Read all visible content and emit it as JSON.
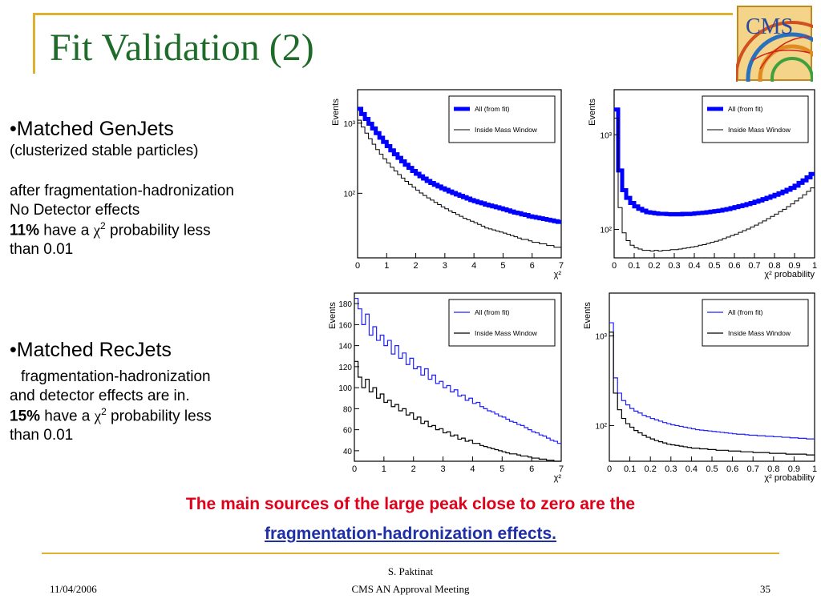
{
  "slide": {
    "title": "Fit Validation (2)",
    "logo_text": "CMS",
    "accent_color": "#e0b030",
    "title_color": "#1f6b2a"
  },
  "left_panel": {
    "section1": {
      "heading": "•Matched GenJets",
      "subheading": "(clusterized stable particles)",
      "line1": "after fragmentation-hadronization",
      "line2": "No Detector effects",
      "stat_value": "11%",
      "stat_text_before": " have a ",
      "chi": "χ",
      "sup": "2",
      "stat_text_after": " probability less",
      "line_last": "than 0.01"
    },
    "section2": {
      "heading": "•Matched RecJets",
      "line1": "fragmentation-hadronization",
      "line2": "and  detector effects are in.",
      "stat_value": "15%",
      "stat_text_before": " have a ",
      "chi": "χ",
      "sup": "2",
      "stat_text_after": " probability less",
      "line_last": "than 0.01"
    }
  },
  "notes": {
    "line1": "The main sources of the large peak close to zero are the",
    "line2": "fragmentation-hadronization effects.",
    "line1_color": "#e0001a",
    "line2_color": "#1f2fa8"
  },
  "footer": {
    "date": "11/04/2006",
    "author": "S. Paktinat",
    "meeting": "CMS AN Approval Meeting",
    "page": "35"
  },
  "chart_data": [
    {
      "type": "line",
      "ylabel": "Events",
      "xlabel": "χ²",
      "log_y": true,
      "xlim": [
        0,
        7
      ],
      "ylim": [
        12,
        3000
      ],
      "xticks": [
        "0",
        "1",
        "2",
        "3",
        "4",
        "5",
        "6",
        "7"
      ],
      "yticks": [
        {
          "value": 100,
          "label": "10²"
        },
        {
          "value": 1000,
          "label": "10³"
        }
      ],
      "legend": {
        "placement": "top-right"
      },
      "series": [
        {
          "name": "All (from fit)",
          "color": "#0000ff",
          "width": 5,
          "values": [
            1600,
            1350,
            1150,
            980,
            840,
            720,
            620,
            540,
            470,
            410,
            360,
            320,
            285,
            255,
            230,
            208,
            190,
            175,
            162,
            150,
            140,
            132,
            125,
            118,
            112,
            106,
            101,
            96,
            92,
            88,
            84,
            80,
            77,
            74,
            72,
            69,
            67,
            65,
            63,
            61,
            59,
            57,
            55,
            53,
            52,
            50,
            49,
            47,
            46,
            45,
            44,
            43,
            42,
            41,
            40,
            39
          ]
        },
        {
          "name": "Inside Mass Window",
          "color": "#000000",
          "width": 1,
          "values": [
            1100,
            880,
            720,
            600,
            500,
            420,
            360,
            310,
            270,
            235,
            208,
            185,
            165,
            148,
            134,
            122,
            111,
            101,
            93,
            86,
            80,
            74,
            69,
            64,
            60,
            56,
            53,
            50,
            47,
            44,
            42,
            40,
            38,
            36,
            34,
            32,
            31,
            30,
            29,
            28,
            27,
            26,
            25,
            24,
            23,
            22,
            22,
            21,
            20,
            20,
            19,
            19,
            18,
            18,
            17,
            17
          ]
        }
      ]
    },
    {
      "type": "line",
      "ylabel": "Events",
      "xlabel": "χ² probability",
      "log_y": true,
      "xlim": [
        0,
        1
      ],
      "ylim": [
        50,
        3000
      ],
      "xticks": [
        "0",
        "0.1",
        "0.2",
        "0.3",
        "0.4",
        "0.5",
        "0.6",
        "0.7",
        "0.8",
        "0.9",
        "1"
      ],
      "yticks": [
        {
          "value": 100,
          "label": "10²"
        },
        {
          "value": 1000,
          "label": "10³"
        }
      ],
      "legend": {
        "placement": "top-right"
      },
      "series": [
        {
          "name": "All (from fit)",
          "color": "#0000ff",
          "width": 5,
          "values": [
            1850,
            420,
            260,
            215,
            190,
            175,
            165,
            158,
            152,
            150,
            148,
            146,
            146,
            145,
            144,
            145,
            144,
            146,
            145,
            146,
            148,
            149,
            150,
            152,
            154,
            156,
            158,
            161,
            164,
            168,
            172,
            176,
            180,
            185,
            190,
            196,
            202,
            209,
            216,
            224,
            232,
            241,
            251,
            262,
            275,
            290,
            310,
            330,
            355,
            385
          ]
        },
        {
          "name": "Inside Mass Window",
          "color": "#000000",
          "width": 1,
          "values": [
            1500,
            170,
            92,
            76,
            68,
            64,
            62,
            60,
            60,
            59,
            60,
            59,
            60,
            60,
            61,
            61,
            62,
            63,
            64,
            65,
            66,
            68,
            69,
            71,
            73,
            75,
            77,
            80,
            83,
            86,
            89,
            93,
            97,
            101,
            106,
            111,
            117,
            123,
            130,
            137,
            145,
            154,
            163,
            174,
            186,
            200,
            215,
            232,
            252,
            275
          ]
        }
      ]
    },
    {
      "type": "line",
      "ylabel": "Events",
      "xlabel": "χ²",
      "log_y": false,
      "xlim": [
        0,
        7
      ],
      "ylim": [
        30,
        190
      ],
      "xticks": [
        "0",
        "1",
        "2",
        "3",
        "4",
        "5",
        "6",
        "7"
      ],
      "yticks": [
        {
          "value": 40,
          "label": "40"
        },
        {
          "value": 60,
          "label": "60"
        },
        {
          "value": 80,
          "label": "80"
        },
        {
          "value": 100,
          "label": "100"
        },
        {
          "value": 120,
          "label": "120"
        },
        {
          "value": 140,
          "label": "140"
        },
        {
          "value": 160,
          "label": "160"
        },
        {
          "value": 180,
          "label": "180"
        }
      ],
      "legend": {
        "placement": "top-right"
      },
      "series": [
        {
          "name": "All (from fit)",
          "color": "#2020ff",
          "width": 1.2,
          "values": [
            185,
            175,
            160,
            170,
            150,
            158,
            145,
            150,
            140,
            145,
            132,
            140,
            128,
            133,
            122,
            128,
            118,
            120,
            112,
            118,
            108,
            112,
            104,
            106,
            100,
            102,
            96,
            98,
            92,
            93,
            88,
            90,
            85,
            86,
            82,
            80,
            78,
            77,
            75,
            73,
            72,
            70,
            68,
            67,
            65,
            64,
            62,
            60,
            58,
            57,
            55,
            54,
            52,
            50,
            49,
            47
          ]
        },
        {
          "name": "Inside Mass Window",
          "color": "#000000",
          "width": 1.2,
          "values": [
            125,
            110,
            100,
            108,
            96,
            100,
            90,
            94,
            86,
            88,
            82,
            84,
            78,
            80,
            74,
            76,
            70,
            72,
            66,
            68,
            63,
            64,
            60,
            61,
            57,
            58,
            54,
            55,
            51,
            52,
            49,
            50,
            47,
            47,
            45,
            44,
            43,
            42,
            41,
            40,
            39,
            38,
            37,
            37,
            36,
            35,
            35,
            34,
            33,
            33,
            32,
            32,
            31,
            31,
            30,
            30
          ]
        }
      ]
    },
    {
      "type": "line",
      "ylabel": "Events",
      "xlabel": "χ² probability",
      "log_y": true,
      "xlim": [
        0,
        1
      ],
      "ylim": [
        40,
        3000
      ],
      "xticks": [
        "0",
        "0.1",
        "0.2",
        "0.3",
        "0.4",
        "0.5",
        "0.6",
        "0.7",
        "0.8",
        "0.9",
        "1"
      ],
      "yticks": [
        {
          "value": 100,
          "label": "10²"
        },
        {
          "value": 1000,
          "label": "10³"
        }
      ],
      "legend": {
        "placement": "top-right"
      },
      "series": [
        {
          "name": "All (from fit)",
          "color": "#2020ff",
          "width": 1.2,
          "values": [
            1400,
            340,
            230,
            190,
            170,
            155,
            145,
            138,
            130,
            125,
            120,
            116,
            112,
            108,
            105,
            102,
            100,
            98,
            96,
            94,
            92,
            90,
            89,
            88,
            87,
            86,
            85,
            84,
            83,
            82,
            81,
            80,
            80,
            79,
            78,
            78,
            77,
            77,
            76,
            76,
            75,
            75,
            74,
            74,
            73,
            73,
            72,
            72,
            71,
            71
          ]
        },
        {
          "name": "Inside Mass Window",
          "color": "#000000",
          "width": 1.2,
          "values": [
            1100,
            230,
            150,
            120,
            105,
            96,
            88,
            83,
            78,
            74,
            71,
            68,
            66,
            64,
            62,
            61,
            60,
            59,
            58,
            57,
            56,
            56,
            55,
            55,
            54,
            54,
            53,
            53,
            53,
            52,
            52,
            52,
            51,
            51,
            51,
            50,
            50,
            50,
            50,
            49,
            49,
            49,
            49,
            48,
            48,
            48,
            48,
            48,
            47,
            47
          ]
        }
      ]
    }
  ]
}
